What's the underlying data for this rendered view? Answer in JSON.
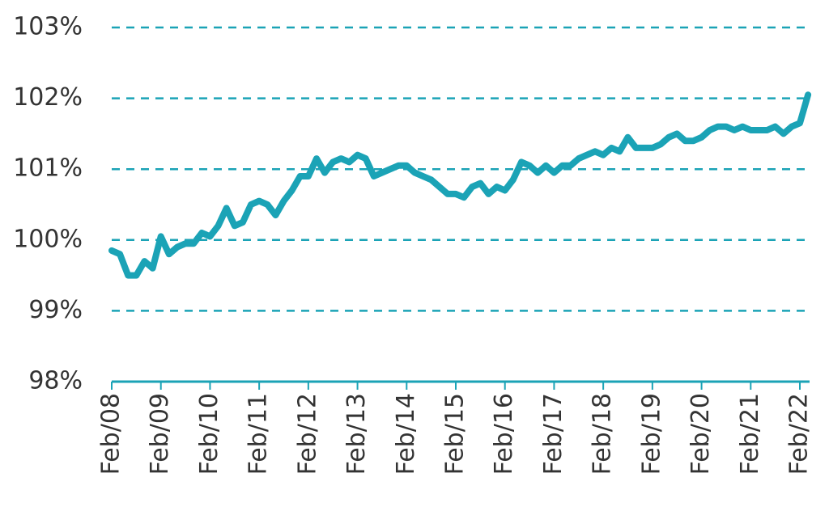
{
  "chart_data": {
    "type": "line",
    "categories": [
      "Feb/08",
      null,
      null,
      null,
      null,
      null,
      "Feb/09",
      null,
      null,
      null,
      null,
      null,
      "Feb/10",
      null,
      null,
      null,
      null,
      null,
      "Feb/11",
      null,
      null,
      null,
      null,
      null,
      "Feb/12",
      null,
      null,
      null,
      null,
      null,
      "Feb/13",
      null,
      null,
      null,
      null,
      null,
      "Feb/14",
      null,
      null,
      null,
      null,
      null,
      "Feb/15",
      null,
      null,
      null,
      null,
      null,
      "Feb/16",
      null,
      null,
      null,
      null,
      null,
      "Feb/17",
      null,
      null,
      null,
      null,
      null,
      "Feb/18",
      null,
      null,
      null,
      null,
      null,
      "Feb/19",
      null,
      null,
      null,
      null,
      null,
      "Feb/20",
      null,
      null,
      null,
      null,
      null,
      "Feb/21",
      null,
      null,
      null,
      null,
      null,
      "Feb/22",
      null
    ],
    "values": [
      99.85,
      99.8,
      99.5,
      99.5,
      99.7,
      99.6,
      100.05,
      99.8,
      99.9,
      99.95,
      99.95,
      100.1,
      100.05,
      100.2,
      100.45,
      100.2,
      100.25,
      100.5,
      100.55,
      100.5,
      100.35,
      100.55,
      100.7,
      100.9,
      100.9,
      101.15,
      100.95,
      101.1,
      101.15,
      101.1,
      101.2,
      101.15,
      100.9,
      100.95,
      101.0,
      101.05,
      101.05,
      100.95,
      100.9,
      100.85,
      100.75,
      100.65,
      100.65,
      100.6,
      100.75,
      100.8,
      100.65,
      100.75,
      100.7,
      100.85,
      101.1,
      101.05,
      100.95,
      101.05,
      100.95,
      101.05,
      101.05,
      101.15,
      101.2,
      101.25,
      101.2,
      101.3,
      101.25,
      101.45,
      101.3,
      101.3,
      101.3,
      101.35,
      101.45,
      101.5,
      101.4,
      101.4,
      101.45,
      101.55,
      101.6,
      101.6,
      101.55,
      101.6,
      101.55,
      101.55,
      101.55,
      101.6,
      101.5,
      101.6,
      101.65,
      102.05
    ],
    "color": "#1ba3b6",
    "ylim": [
      98,
      103
    ],
    "yticks": [
      {
        "value": 98,
        "label": "98%"
      },
      {
        "value": 99,
        "label": "99%"
      },
      {
        "value": 100,
        "label": "100%"
      },
      {
        "value": 101,
        "label": "101%"
      },
      {
        "value": 102,
        "label": "102%"
      },
      {
        "value": 103,
        "label": "103%"
      }
    ],
    "grid": true
  }
}
